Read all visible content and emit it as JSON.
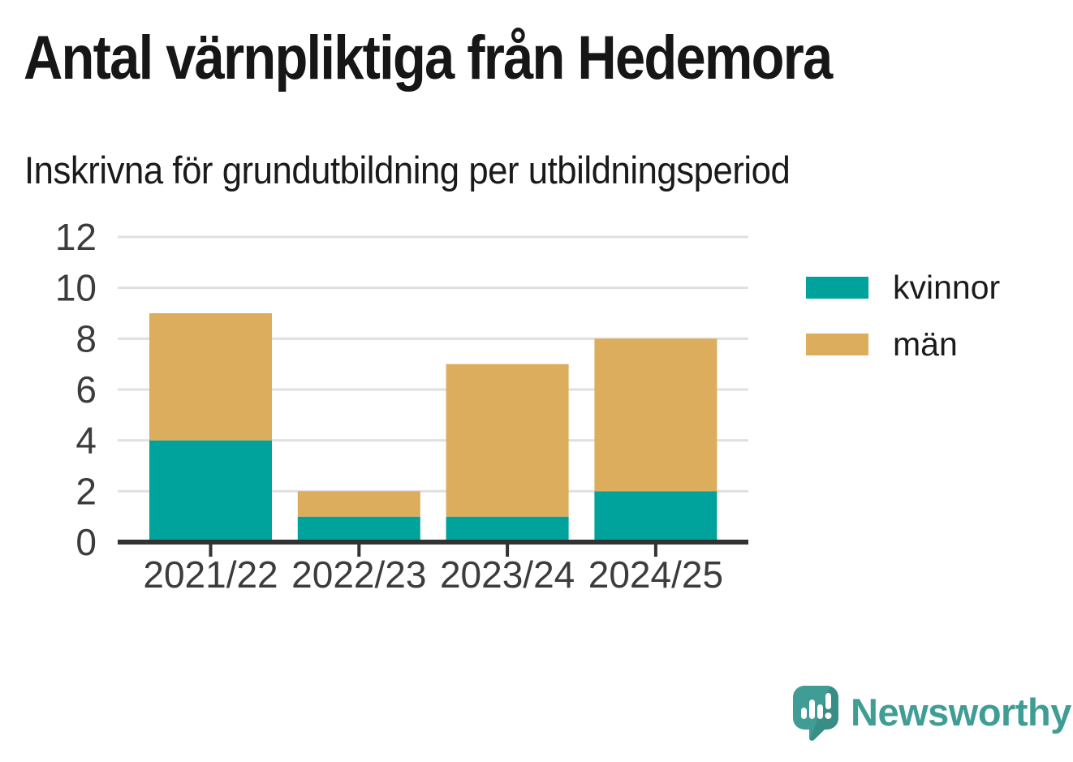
{
  "page": {
    "title": "Antal värnpliktiga från Hedemora",
    "subtitle": "Inskrivna för grundutbildning per utbildningsperiod"
  },
  "chart_data": {
    "type": "bar",
    "stacked": true,
    "title": "Antal värnpliktiga från Hedemora",
    "subtitle": "Inskrivna för grundutbildning per utbildningsperiod",
    "categories": [
      "2021/22",
      "2022/23",
      "2023/24",
      "2024/25"
    ],
    "series": [
      {
        "name": "kvinnor",
        "color": "#00a39b",
        "values": [
          4,
          1,
          1,
          2
        ]
      },
      {
        "name": "män",
        "color": "#dbad5c",
        "values": [
          5,
          1,
          6,
          6
        ]
      }
    ],
    "totals": [
      9,
      2,
      7,
      8
    ],
    "xlabel": "",
    "ylabel": "",
    "ylim": [
      0,
      12
    ],
    "yticks": [
      0,
      2,
      4,
      6,
      8,
      10,
      12
    ],
    "grid": true,
    "legend_position": "right",
    "colors": {
      "gridline": "#e0e0e0",
      "axis": "#333333",
      "tick_label": "#3c3c3c"
    }
  },
  "legend": {
    "items": [
      {
        "label": "kvinnor",
        "color": "#00a39b"
      },
      {
        "label": "män",
        "color": "#dbad5c"
      }
    ]
  },
  "footer": {
    "brand_name": "Newsworthy",
    "brand_color": "#3f9d96",
    "logo_icon": "speech-bubble-bar-chart"
  }
}
